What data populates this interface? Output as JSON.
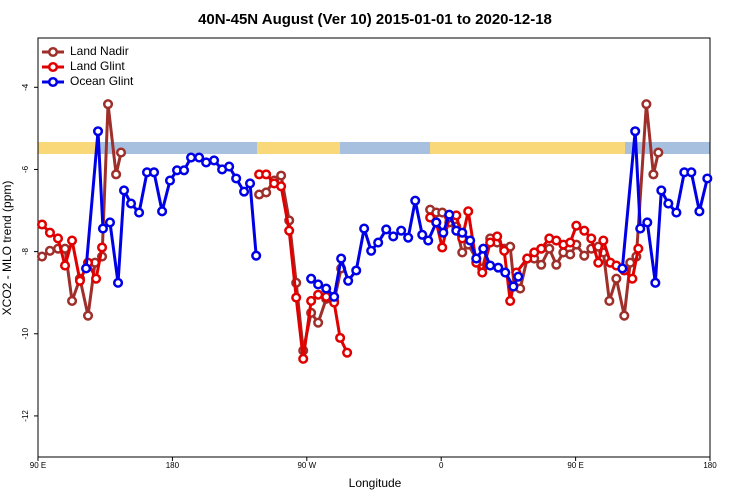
{
  "chart_data": {
    "type": "line",
    "title": "40N-45N August (Ver 10)   2015-01-01 to 2020-12-18",
    "xlabel": "Longitude",
    "ylabel": "XCO2 - MLO trend (ppm)",
    "xlim": [
      90,
      540
    ],
    "xticks": [
      {
        "value": 90,
        "label": "90 E"
      },
      180,
      {
        "value": 270,
        "label": "90 W"
      },
      {
        "value": 360,
        "label": "0"
      },
      {
        "value": 450,
        "label": "90 E"
      },
      {
        "value": 540,
        "label": "180"
      }
    ],
    "ylim": [
      -13,
      -2.8
    ],
    "yticks": [
      -4,
      -6,
      -8,
      -10,
      -12
    ],
    "legend": "upper left",
    "series": [
      {
        "name": "Land Nadir",
        "color": "#9e2f2a",
        "x": [
          92.7,
          98,
          103.4,
          108.1,
          112.8,
          118.1,
          123.5,
          128.2,
          132.9,
          136.9,
          142.3,
          145.6,
          null,
          238.1,
          242.8,
          248.1,
          252.8,
          258.2,
          262.9,
          267.6,
          272.9,
          277.6,
          283,
          288.3,
          293,
          null,
          352.6,
          356.7,
          360.7,
          365.4,
          370.1,
          374.1,
          378.1,
          383.5,
          387.5,
          392.8,
          397.5,
          402.2,
          406.2,
          408.9,
          412.9,
          417.6,
          422.3,
          427,
          432.4,
          437.1,
          441.8,
          446.4,
          450.5,
          455.8,
          460.5,
          465.2,
          468.6,
          472.6,
          477.3,
          482.6,
          486.6,
          490.7,
          497.4,
          502.1,
          505.4
        ],
        "values": [
          -8.12,
          -7.98,
          -7.93,
          -7.93,
          -9.2,
          -8.66,
          -9.56,
          -8.27,
          -8.12,
          -4.41,
          -6.12,
          -5.59,
          null,
          -6.61,
          -6.56,
          -6.27,
          -6.15,
          -7.24,
          -8.76,
          -10.41,
          -9.49,
          -9.73,
          -9.15,
          -9.2,
          -8.41,
          null,
          -6.98,
          -7.05,
          -7.05,
          -7.29,
          -7.39,
          -8.02,
          -7.83,
          -8.17,
          -8.41,
          -7.68,
          -7.78,
          -7.93,
          -7.88,
          -8.85,
          -8.9,
          -8.17,
          -8.17,
          -8.32,
          -7.93,
          -8.32,
          -8.02,
          -8.07,
          -7.83,
          -8.1,
          -7.93,
          -7.88,
          -8.02,
          -9.2,
          -8.66,
          -9.56,
          -8.27,
          -8.12,
          -4.41,
          -6.12,
          -5.59
        ]
      },
      {
        "name": "Land Glint",
        "color": "#e00000",
        "x": [
          92.7,
          98,
          103.4,
          108.1,
          112.8,
          118.1,
          123.5,
          128.9,
          132.9,
          null,
          238.1,
          242.8,
          248.1,
          252.8,
          258.2,
          262.9,
          267.6,
          272.9,
          277.6,
          283,
          288.3,
          292.3,
          297,
          null,
          352.6,
          356.7,
          360.7,
          365.4,
          370.1,
          374.1,
          378.1,
          383.5,
          387.5,
          392.8,
          397.5,
          402.2,
          406.2,
          410.3,
          417.6,
          422.3,
          427,
          432.4,
          437.1,
          441.8,
          446.4,
          450.5,
          455.8,
          460.5,
          465.2,
          468.6,
          473.3,
          477.3,
          482.6,
          488,
          492
        ],
        "values": [
          -7.34,
          -7.54,
          -7.68,
          -8.34,
          -7.73,
          -8.71,
          -8.27,
          -8.66,
          -7.9,
          null,
          -6.12,
          -6.12,
          -6.34,
          -6.41,
          -7.49,
          -9.12,
          -10.61,
          -9.2,
          -9.05,
          -9.1,
          -9.24,
          -10.1,
          -10.46,
          null,
          -7.17,
          -7.29,
          -7.9,
          -7.17,
          -7.12,
          -7.68,
          -7.02,
          -8.27,
          -8.51,
          -7.78,
          -7.63,
          -7.98,
          -9.2,
          -8.51,
          -8.17,
          -8.02,
          -7.93,
          -7.68,
          -7.73,
          -7.83,
          -7.78,
          -7.37,
          -7.49,
          -7.68,
          -8.27,
          -7.73,
          -8.27,
          -8.34,
          -8.46,
          -8.66,
          -7.93
        ]
      },
      {
        "name": "Ocean Glint",
        "color": "#0000e6",
        "x": [
          122.2,
          130.2,
          133.5,
          138.2,
          143.6,
          147.6,
          152.3,
          157.7,
          163,
          167.7,
          173.1,
          178.4,
          183.1,
          187.8,
          192.5,
          197.9,
          202.6,
          207.9,
          213.3,
          218,
          222.7,
          228,
          232,
          236.1,
          null,
          272.9,
          277.6,
          283,
          288.3,
          293,
          297.7,
          303.1,
          308.4,
          313.1,
          317.8,
          323.2,
          327.9,
          333.2,
          337.9,
          342.6,
          347.3,
          351.3,
          356.7,
          361.4,
          365.4,
          370.1,
          374.1,
          379.4,
          383.5,
          388.2,
          392.8,
          398.2,
          402.9,
          408.3,
          411.6,
          null,
          481.3,
          489.9,
          493.3,
          498,
          503.4,
          507.4,
          512.1,
          517.5,
          522.8,
          527.5,
          532.9,
          538.2
        ],
        "values": [
          -8.41,
          -5.07,
          -7.44,
          -7.29,
          -8.76,
          -6.51,
          -6.83,
          -7.05,
          -6.07,
          -6.07,
          -7.02,
          -6.27,
          -6.02,
          -6.02,
          -5.71,
          -5.71,
          -5.83,
          -5.78,
          -6,
          -5.93,
          -6.22,
          -6.54,
          -6.34,
          -8.1,
          null,
          -8.66,
          -8.8,
          -8.9,
          -9.1,
          -8.17,
          -8.71,
          -8.46,
          -7.44,
          -7.98,
          -7.78,
          -7.46,
          -7.63,
          -7.49,
          -7.66,
          -6.76,
          -7.59,
          -7.73,
          -7.29,
          -7.54,
          -7.1,
          -7.49,
          -7.54,
          -7.73,
          -8.17,
          -7.93,
          -8.34,
          -8.39,
          -8.51,
          -8.85,
          -8.61,
          null,
          -8.41,
          -5.07,
          -7.44,
          -7.29,
          -8.76,
          -6.51,
          -6.83,
          -7.05,
          -6.07,
          -6.07,
          -7.02,
          -6.22
        ]
      }
    ]
  }
}
